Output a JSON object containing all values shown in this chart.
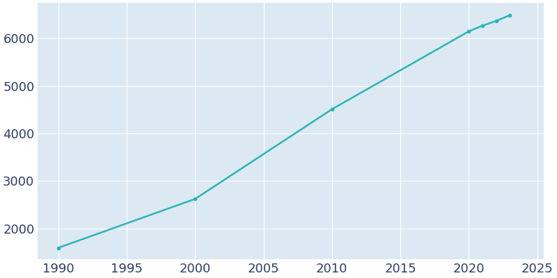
{
  "years": [
    1990,
    2000,
    2010,
    2020,
    2021,
    2022,
    2023
  ],
  "population": [
    1590,
    2620,
    4510,
    6150,
    6270,
    6370,
    6490
  ],
  "line_color": "#2ab5b5",
  "marker_color": "#2ab5b5",
  "figure_bg_color": "#ffffff",
  "plot_bg_color": "#dce9f3",
  "grid_color": "#ffffff",
  "tick_color": "#2d3e6b",
  "xlim": [
    1988.5,
    2025.5
  ],
  "ylim": [
    1350,
    6750
  ],
  "xticks": [
    1990,
    1995,
    2000,
    2005,
    2010,
    2015,
    2020,
    2025
  ],
  "yticks": [
    2000,
    3000,
    4000,
    5000,
    6000
  ],
  "marker_size": 4,
  "line_width": 1.8,
  "tick_fontsize": 13
}
